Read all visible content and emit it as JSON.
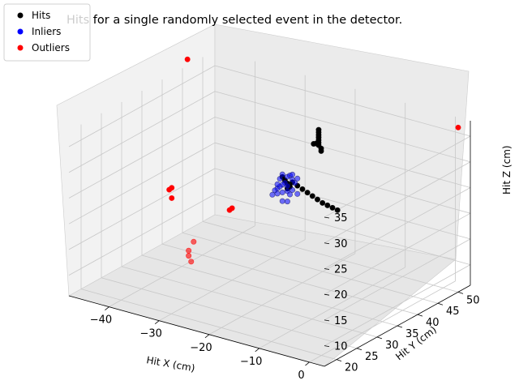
{
  "chart_data": {
    "type": "scatter3d",
    "title": "Hits for a single randomly selected event in the detector.",
    "xlabel": "Hit X (cm)",
    "ylabel": "Hit Y (cm)",
    "zlabel": "Hit Z (cm)",
    "xticks": [
      "−40",
      "−30",
      "−20",
      "−10",
      "0"
    ],
    "yticks": [
      "20",
      "25",
      "30",
      "35",
      "40",
      "45",
      "50"
    ],
    "zticks": [
      "10",
      "15",
      "20",
      "25",
      "30",
      "35"
    ],
    "xlim": [
      -48,
      3
    ],
    "ylim": [
      17,
      53
    ],
    "zlim": [
      6,
      38
    ],
    "grid": true,
    "legend_position": "top-left",
    "legend": [
      {
        "label": "Hits",
        "color": "#000000"
      },
      {
        "label": "Inliers",
        "color": "#0000ff"
      },
      {
        "label": "Outliers",
        "color": "#ff0000"
      }
    ],
    "series": [
      {
        "name": "Hits",
        "color": "#000000",
        "points": [
          [
            -20,
            44,
            34
          ],
          [
            -20,
            44,
            33.5
          ],
          [
            -20,
            44,
            33
          ],
          [
            -20,
            44,
            32.5
          ],
          [
            -20,
            44,
            32
          ],
          [
            -20,
            44,
            31.5
          ],
          [
            -20,
            44,
            31
          ],
          [
            -19.5,
            44,
            30.5
          ],
          [
            -19.5,
            44,
            30
          ],
          [
            -21,
            44,
            31
          ],
          [
            -20.5,
            44,
            31.2
          ],
          [
            -22,
            40,
            25
          ],
          [
            -21,
            40,
            24.6
          ],
          [
            -20,
            40,
            24.2
          ],
          [
            -19,
            40,
            23.8
          ],
          [
            -18,
            40,
            23.4
          ],
          [
            -17,
            40,
            23
          ],
          [
            -16,
            40,
            22.6
          ],
          [
            -15,
            40,
            22.4
          ],
          [
            -14,
            40,
            22.2
          ],
          [
            -13,
            40,
            22
          ],
          [
            -24,
            40,
            25.5
          ],
          [
            -23.5,
            40,
            25
          ],
          [
            -23,
            40,
            24.5
          ],
          [
            -22.5,
            40,
            24
          ],
          [
            -23,
            40,
            23.5
          ]
        ]
      },
      {
        "name": "Inliers",
        "color": "#0000ff",
        "points": [
          [
            -24,
            40,
            26
          ],
          [
            -23,
            40,
            25.8
          ],
          [
            -22.5,
            40,
            26.2
          ],
          [
            -22,
            40,
            25.5
          ],
          [
            -21.5,
            40,
            25
          ],
          [
            -23.5,
            40,
            24.5
          ],
          [
            -23,
            40,
            24
          ],
          [
            -24.5,
            40,
            25
          ],
          [
            -24,
            40,
            24
          ],
          [
            -25,
            40,
            23
          ],
          [
            -24.5,
            40,
            23.5
          ],
          [
            -25.5,
            40,
            22.5
          ],
          [
            -25,
            40,
            22
          ],
          [
            -26,
            40,
            21.5
          ],
          [
            -24,
            40,
            22.5
          ],
          [
            -23,
            40,
            23
          ],
          [
            -22,
            40,
            23.5
          ],
          [
            -22.5,
            40,
            22.5
          ],
          [
            -21,
            40,
            23
          ],
          [
            -22,
            40,
            26.5
          ],
          [
            -21,
            40,
            26
          ],
          [
            -23,
            40,
            21
          ],
          [
            -24,
            40,
            20.8
          ],
          [
            -25,
            40,
            23.8
          ]
        ]
      },
      {
        "name": "Outliers",
        "color": "#ff0000",
        "points": [
          [
            -47,
            45,
            40
          ],
          [
            3,
            50,
            38
          ],
          [
            -38,
            30,
            24
          ],
          [
            -38.5,
            30,
            23.5
          ],
          [
            -38,
            30,
            22
          ],
          [
            -30,
            35,
            20
          ],
          [
            -30.5,
            35,
            19.5
          ],
          [
            -32,
            28,
            16
          ],
          [
            -33,
            28,
            14
          ],
          [
            -33,
            28,
            13
          ],
          [
            -32.5,
            28,
            12
          ]
        ]
      }
    ]
  }
}
